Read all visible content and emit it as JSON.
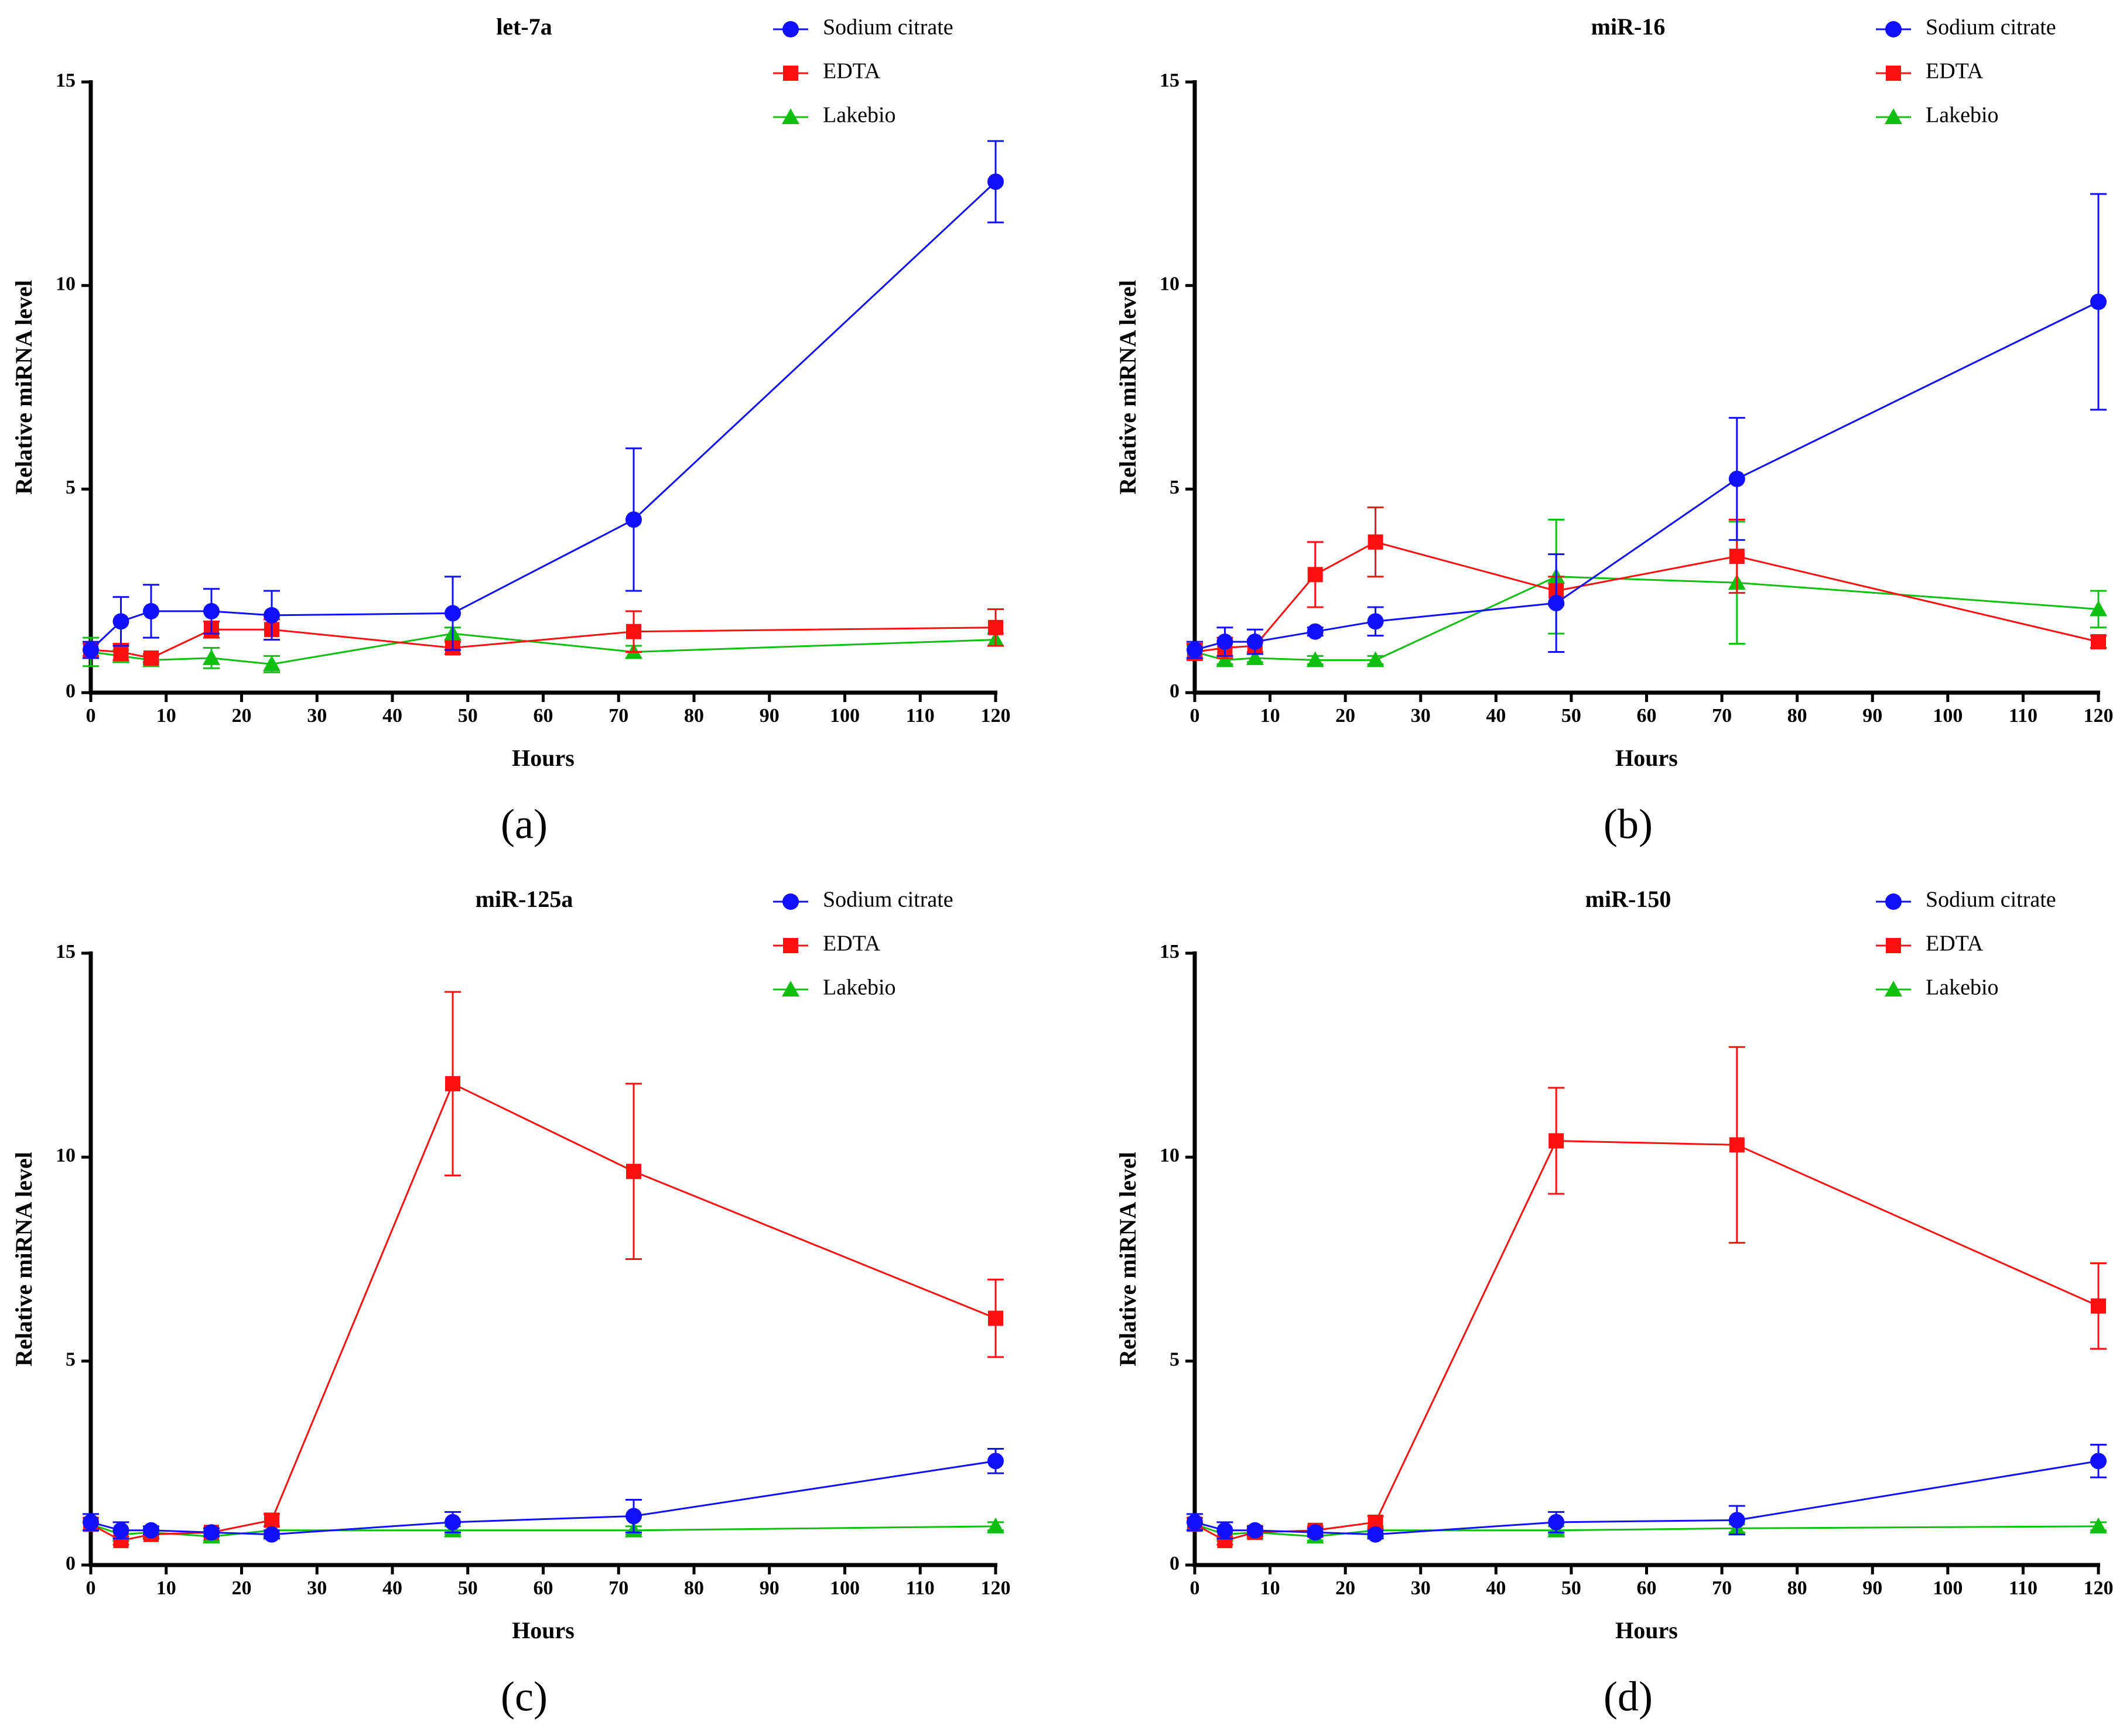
{
  "figure": {
    "series_styles": [
      {
        "name": "Sodium citrate",
        "color": "#1010ff",
        "marker": "circle"
      },
      {
        "name": "EDTA",
        "color": "#ff1010",
        "marker": "square"
      },
      {
        "name": "Lakebio",
        "color": "#10c010",
        "marker": "triangle"
      }
    ]
  },
  "chart_data": [
    {
      "type": "line",
      "panel_letter": "(a)",
      "title": "let-7a",
      "xlabel": "Hours",
      "ylabel": "Relative miRNA level",
      "xlim": [
        0,
        120
      ],
      "ylim": [
        0,
        15
      ],
      "xticks": [
        0,
        10,
        20,
        30,
        40,
        50,
        60,
        70,
        80,
        90,
        100,
        110,
        120
      ],
      "yticks": [
        0,
        5,
        10,
        15
      ],
      "legend_position": "top-right",
      "x": [
        0,
        4,
        8,
        16,
        24,
        48,
        72,
        120
      ],
      "series": [
        {
          "name": "Sodium citrate",
          "values": [
            1.05,
            1.75,
            2.0,
            2.0,
            1.9,
            1.95,
            4.25,
            12.55
          ],
          "errors": [
            0.2,
            0.6,
            0.65,
            0.55,
            0.6,
            0.9,
            1.75,
            1.0
          ]
        },
        {
          "name": "EDTA",
          "values": [
            1.05,
            1.0,
            0.85,
            1.55,
            1.55,
            1.1,
            1.5,
            1.6
          ],
          "errors": [
            0.15,
            0.2,
            0.1,
            0.2,
            0.25,
            0.15,
            0.5,
            0.45
          ]
        },
        {
          "name": "Lakebio",
          "values": [
            1.0,
            0.9,
            0.8,
            0.85,
            0.7,
            1.45,
            1.0,
            1.3
          ],
          "errors": [
            0.35,
            0.15,
            0.1,
            0.25,
            0.2,
            0.15,
            0.15,
            0.15
          ]
        }
      ]
    },
    {
      "type": "line",
      "panel_letter": "(b)",
      "title": "miR-16",
      "xlabel": "Hours",
      "ylabel": "Relative miRNA level",
      "xlim": [
        0,
        120
      ],
      "ylim": [
        0,
        15
      ],
      "xticks": [
        0,
        10,
        20,
        30,
        40,
        50,
        60,
        70,
        80,
        90,
        100,
        110,
        120
      ],
      "yticks": [
        0,
        5,
        10,
        15
      ],
      "legend_position": "top-right",
      "x": [
        0,
        4,
        8,
        16,
        24,
        48,
        72,
        120
      ],
      "series": [
        {
          "name": "Sodium citrate",
          "values": [
            1.05,
            1.25,
            1.25,
            1.5,
            1.75,
            2.2,
            5.25,
            9.6
          ],
          "errors": [
            0.2,
            0.35,
            0.3,
            0.1,
            0.35,
            1.2,
            1.5,
            2.65
          ]
        },
        {
          "name": "EDTA",
          "values": [
            1.0,
            1.1,
            1.15,
            2.9,
            3.7,
            2.5,
            3.35,
            1.25
          ],
          "errors": [
            0.2,
            0.25,
            0.15,
            0.8,
            0.85,
            0.35,
            0.9,
            0.15
          ]
        },
        {
          "name": "Lakebio",
          "values": [
            1.0,
            0.8,
            0.85,
            0.8,
            0.8,
            2.85,
            2.7,
            2.05
          ],
          "errors": [
            0.15,
            0.1,
            0.1,
            0.1,
            0.1,
            1.4,
            1.5,
            0.45
          ]
        }
      ]
    },
    {
      "type": "line",
      "panel_letter": "(c)",
      "title": "miR-125a",
      "xlabel": "Hours",
      "ylabel": "Relative miRNA level",
      "xlim": [
        0,
        120
      ],
      "ylim": [
        0,
        15
      ],
      "xticks": [
        0,
        10,
        20,
        30,
        40,
        50,
        60,
        70,
        80,
        90,
        100,
        110,
        120
      ],
      "yticks": [
        0,
        5,
        10,
        15
      ],
      "legend_position": "top-right",
      "x": [
        0,
        4,
        8,
        16,
        24,
        48,
        72,
        120
      ],
      "series": [
        {
          "name": "Sodium citrate",
          "values": [
            1.05,
            0.85,
            0.85,
            0.8,
            0.75,
            1.05,
            1.2,
            2.55
          ],
          "errors": [
            0.2,
            0.2,
            0.1,
            0.1,
            0.1,
            0.25,
            0.4,
            0.3
          ]
        },
        {
          "name": "EDTA",
          "values": [
            1.0,
            0.6,
            0.75,
            0.8,
            1.1,
            11.8,
            9.65,
            6.05
          ],
          "errors": [
            0.15,
            0.1,
            0.1,
            0.1,
            0.15,
            2.25,
            2.15,
            0.95
          ]
        },
        {
          "name": "Lakebio",
          "values": [
            1.0,
            0.75,
            0.8,
            0.7,
            0.85,
            0.85,
            0.85,
            0.95
          ],
          "errors": [
            0.15,
            0.1,
            0.1,
            0.1,
            0.1,
            0.1,
            0.1,
            0.1
          ]
        }
      ]
    },
    {
      "type": "line",
      "panel_letter": "(d)",
      "title": "miR-150",
      "xlabel": "Hours",
      "ylabel": "Relative miRNA level",
      "xlim": [
        0,
        120
      ],
      "ylim": [
        0,
        15
      ],
      "xticks": [
        0,
        10,
        20,
        30,
        40,
        50,
        60,
        70,
        80,
        90,
        100,
        110,
        120
      ],
      "yticks": [
        0,
        5,
        10,
        15
      ],
      "legend_position": "top-right",
      "x": [
        0,
        4,
        8,
        16,
        24,
        48,
        72,
        120
      ],
      "series": [
        {
          "name": "Sodium citrate",
          "values": [
            1.05,
            0.85,
            0.85,
            0.8,
            0.75,
            1.05,
            1.1,
            2.55
          ],
          "errors": [
            0.2,
            0.2,
            0.1,
            0.1,
            0.1,
            0.25,
            0.35,
            0.4
          ]
        },
        {
          "name": "EDTA",
          "values": [
            1.0,
            0.6,
            0.8,
            0.85,
            1.05,
            10.4,
            10.3,
            6.35
          ],
          "errors": [
            0.15,
            0.1,
            0.1,
            0.1,
            0.15,
            1.3,
            2.4,
            1.05
          ]
        },
        {
          "name": "Lakebio",
          "values": [
            1.0,
            0.75,
            0.8,
            0.7,
            0.85,
            0.85,
            0.9,
            0.95
          ],
          "errors": [
            0.15,
            0.1,
            0.1,
            0.1,
            0.1,
            0.1,
            0.1,
            0.1
          ]
        }
      ]
    }
  ]
}
